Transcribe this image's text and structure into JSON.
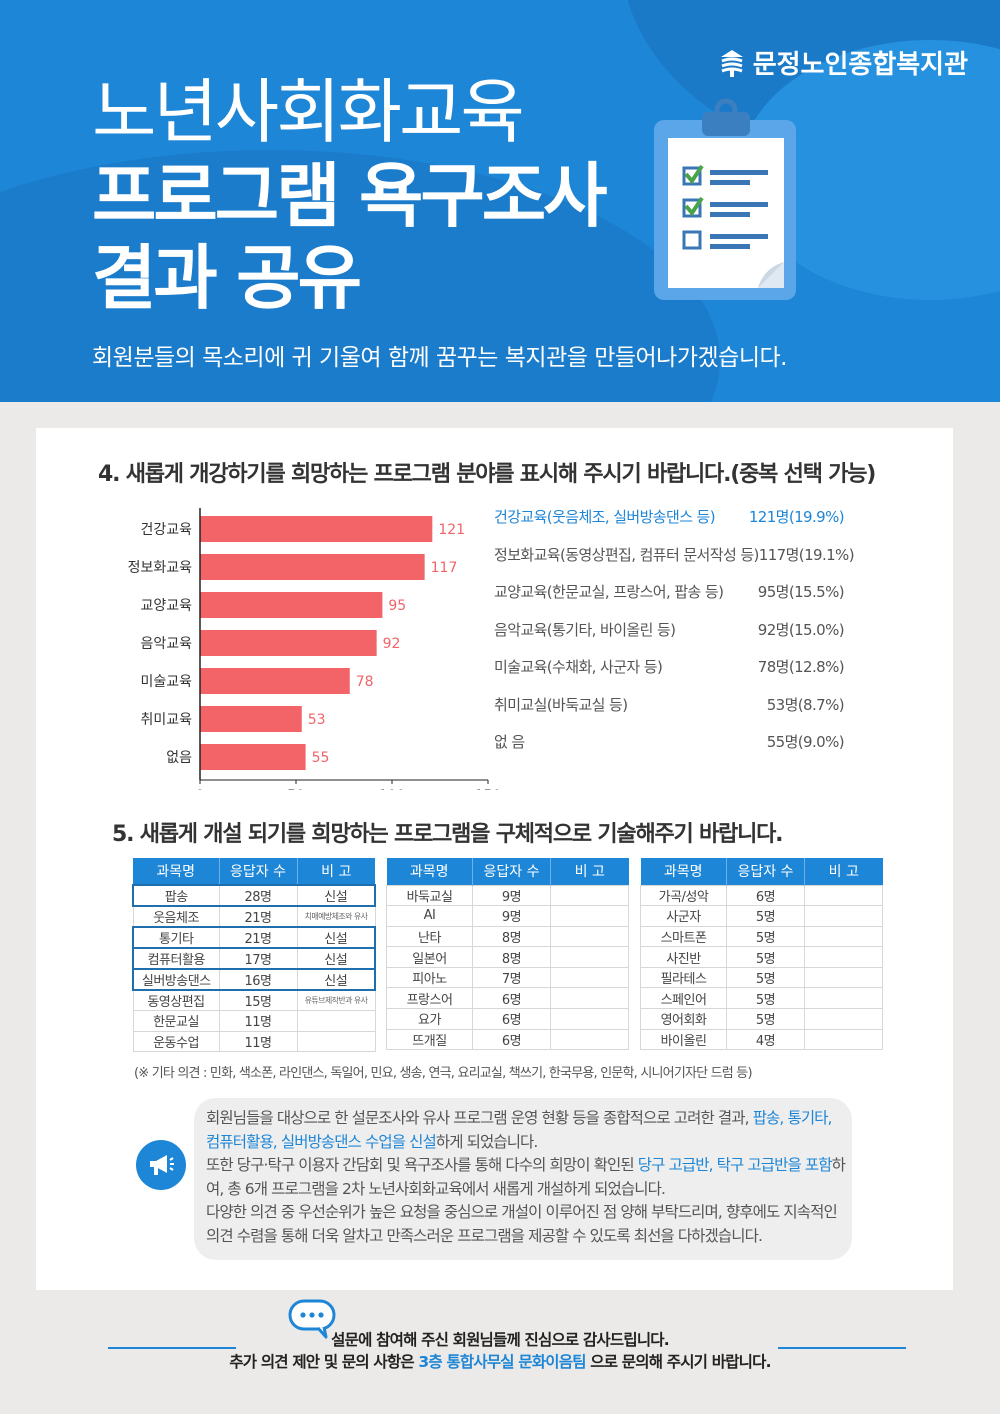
{
  "org": {
    "name": "문정노인종합복지관"
  },
  "header": {
    "title_line1": "노년사회화교육",
    "title_line2": "프로그램 욕구조사",
    "title_line3": "결과 공유",
    "subtitle": "회원분들의 목소리에 귀 기울여 함께 꿈꾸는 복지관을 만들어나가겠습니다."
  },
  "q4": {
    "question": "4. 새롭게 개강하기를 희망하는 프로그램 분야를 표시해 주시기 바랍니다.(중복 선택 가능)",
    "summary": [
      {
        "label": "건강교육(웃음체조, 실버방송댄스 등)",
        "value": "121명(19.9%)",
        "highlight": true
      },
      {
        "label": "정보화교육(동영상편집, 컴퓨터 문서작성 등)",
        "value": "117명(19.1%)",
        "highlight": false
      },
      {
        "label": "교양교육(한문교실, 프랑스어, 팝송 등)",
        "value": "95명(15.5%)",
        "highlight": false
      },
      {
        "label": "음악교육(통기타, 바이올린 등)",
        "value": "92명(15.0%)",
        "highlight": false
      },
      {
        "label": "미술교육(수채화, 사군자 등)",
        "value": "78명(12.8%)",
        "highlight": false
      },
      {
        "label": "취미교실(바둑교실 등)",
        "value": "53명(8.7%)",
        "highlight": false
      },
      {
        "label": "없 음",
        "value": "55명(9.0%)",
        "highlight": false
      }
    ]
  },
  "chart_data": {
    "type": "bar",
    "orientation": "horizontal",
    "categories": [
      "건강교육",
      "정보화교육",
      "교양교육",
      "음악교육",
      "미술교육",
      "취미교육",
      "없음"
    ],
    "values": [
      121,
      117,
      95,
      92,
      78,
      53,
      55
    ],
    "xlim": [
      0,
      150
    ],
    "xticks": [
      "0",
      "50",
      "100",
      "150"
    ],
    "bar_color": "#f26468",
    "label_color": "#f26468",
    "grid": false
  },
  "q5": {
    "question": "5. 새롭게 개설 되기를 희망하는 프로그램을 구체적으로 기술해주기 바랍니다.",
    "headers": [
      "과목명",
      "응답자 수",
      "비 고"
    ],
    "table1": [
      {
        "name": "팝송",
        "count": "28명",
        "note": "신설",
        "boxed": true,
        "small": false
      },
      {
        "name": "웃음체조",
        "count": "21명",
        "note": "치매예방체조와 유사",
        "boxed": false,
        "small": true
      },
      {
        "name": "통기타",
        "count": "21명",
        "note": "신설",
        "boxed": true,
        "small": false
      },
      {
        "name": "컴퓨터활용",
        "count": "17명",
        "note": "신설",
        "boxed": true,
        "small": false
      },
      {
        "name": "실버방송댄스",
        "count": "16명",
        "note": "신설",
        "boxed": true,
        "small": false
      },
      {
        "name": "동영상편집",
        "count": "15명",
        "note": "유튜브제작반과 유사",
        "boxed": false,
        "small": true
      },
      {
        "name": "한문교실",
        "count": "11명",
        "note": "",
        "boxed": false,
        "small": false
      },
      {
        "name": "운동수업",
        "count": "11명",
        "note": "",
        "boxed": false,
        "small": false
      }
    ],
    "table2": [
      {
        "name": "바둑교실",
        "count": "9명",
        "note": ""
      },
      {
        "name": "AI",
        "count": "9명",
        "note": ""
      },
      {
        "name": "난타",
        "count": "8명",
        "note": ""
      },
      {
        "name": "일본어",
        "count": "8명",
        "note": ""
      },
      {
        "name": "피아노",
        "count": "7명",
        "note": ""
      },
      {
        "name": "프랑스어",
        "count": "6명",
        "note": ""
      },
      {
        "name": "요가",
        "count": "6명",
        "note": ""
      },
      {
        "name": "뜨개질",
        "count": "6명",
        "note": ""
      }
    ],
    "table3": [
      {
        "name": "가곡/성악",
        "count": "6명",
        "note": ""
      },
      {
        "name": "사군자",
        "count": "5명",
        "note": ""
      },
      {
        "name": "스마트폰",
        "count": "5명",
        "note": ""
      },
      {
        "name": "사진반",
        "count": "5명",
        "note": ""
      },
      {
        "name": "필라테스",
        "count": "5명",
        "note": ""
      },
      {
        "name": "스페인어",
        "count": "5명",
        "note": ""
      },
      {
        "name": "영어회화",
        "count": "5명",
        "note": ""
      },
      {
        "name": "바이올린",
        "count": "4명",
        "note": ""
      }
    ],
    "etc": "(※ 기타 의견 : 민화, 색소폰, 라인댄스, 독일어, 민요, 생송, 연극, 요리교실, 책쓰기, 한국무용, 인문학, 시니어기자단 드럼 등)"
  },
  "notice": {
    "p1_a": "회원님들을 대상으로 한 설문조사와 유사 프로그램 운영 현황 등을 종합적으로 고려한 결과, ",
    "p1_hl": "팝송, 통기타, 컴퓨터활용, 실버방송댄스 수업을 신설",
    "p1_b": "하게 되었습니다.",
    "p2_a": "또한 당구·탁구 이용자 간담회 및 욕구조사를 통해 다수의 희망이 확인된 ",
    "p2_hl": "당구 고급반, 탁구 고급반을 포함",
    "p2_b": "하여, 총 6개 프로그램을 2차 노년사회화교육에서 새롭게 개설하게 되었습니다.",
    "p3": "다양한 의견 중 우선순위가 높은 요청을 중심으로 개설이 이루어진 점 양해 부탁드리며, 향후에도 지속적인 의견 수렴을 통해 더욱 알차고 만족스러운 프로그램을 제공할 수 있도록 최선을 다하겠습니다."
  },
  "footer": {
    "line1": "설문에 참여해 주신 회원님들께 진심으로 감사드립니다.",
    "line2_a": "추가 의견 제안 및 문의 사항은 ",
    "line2_hl": "3층 통합사무실 문화이음팀",
    "line2_b": " 으로 문의해 주시기 바랍니다."
  },
  "colors": {
    "brand": "#1e86d6",
    "bar": "#f26468"
  },
  "icons": [
    "logo-icon",
    "clipboard-icon",
    "megaphone-icon",
    "speech-bubble-icon"
  ]
}
